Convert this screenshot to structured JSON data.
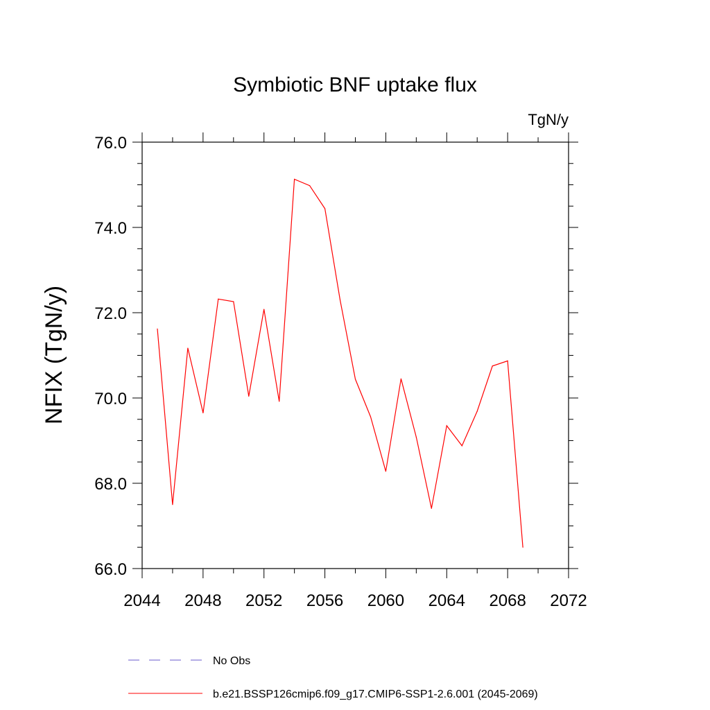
{
  "chart_data": {
    "type": "line",
    "title": "Symbiotic BNF uptake flux",
    "units": "TgN/y",
    "ylabel": "NFIX  (TgN/y)",
    "xlabel": "",
    "xlim": [
      2044,
      2072
    ],
    "ylim": [
      66.0,
      76.0
    ],
    "x_ticks": [
      2044,
      2048,
      2052,
      2056,
      2060,
      2064,
      2068,
      2072
    ],
    "x_tick_labels": [
      "2044",
      "2048",
      "2052",
      "2056",
      "2060",
      "2064",
      "2068",
      "2072"
    ],
    "y_ticks": [
      66,
      68,
      70,
      72,
      74,
      76
    ],
    "y_tick_labels": [
      "66.0",
      "68.0",
      "70.0",
      "72.0",
      "74.0",
      "76.0"
    ],
    "grid": false,
    "legend_position": "bottom",
    "series": [
      {
        "name": "b.e21.BSSP126cmip6.f09_g17.CMIP6-SSP1-2.6.001 (2045-2069)",
        "color": "#ff0000",
        "line_style": "solid",
        "x": [
          2045,
          2046,
          2047,
          2048,
          2049,
          2050,
          2051,
          2052,
          2053,
          2054,
          2055,
          2056,
          2057,
          2058,
          2059,
          2060,
          2061,
          2062,
          2063,
          2064,
          2065,
          2066,
          2067,
          2068,
          2069
        ],
        "y": [
          71.62,
          67.5,
          71.17,
          69.65,
          72.32,
          72.26,
          70.04,
          72.08,
          69.92,
          75.13,
          74.98,
          74.44,
          72.3,
          70.44,
          69.56,
          68.28,
          70.45,
          69.08,
          67.41,
          69.35,
          68.88,
          69.69,
          70.75,
          70.87,
          66.5
        ]
      }
    ],
    "legend": [
      {
        "label": "No Obs",
        "color": "#6a5acd",
        "line_style": "dashed"
      },
      {
        "label": "b.e21.BSSP126cmip6.f09_g17.CMIP6-SSP1-2.6.001 (2045-2069)",
        "color": "#ff0000",
        "line_style": "solid"
      }
    ]
  }
}
